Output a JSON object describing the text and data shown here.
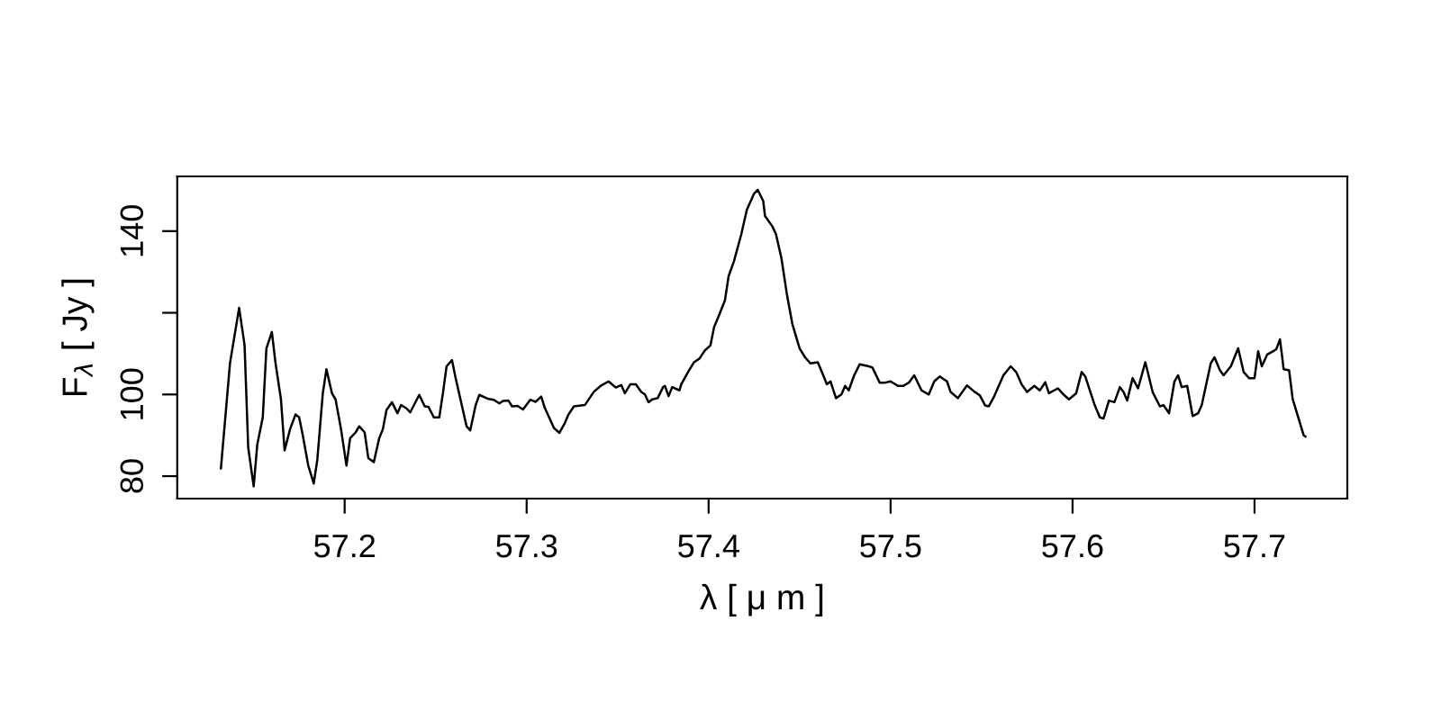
{
  "chart_data": {
    "type": "line",
    "xlabel": "λ [ μ m ]",
    "ylabel": "F$_{λ}$ [ Jy ]",
    "xlim": [
      57.108,
      57.751
    ],
    "ylim": [
      74.5,
      153.4
    ],
    "xticks": [
      57.2,
      57.3,
      57.4,
      57.5,
      57.6,
      57.7
    ],
    "yticks": [
      80,
      100,
      {
        "value": 120,
        "label": null
      },
      140
    ],
    "grid": false,
    "marker": "none",
    "line_style": "solid",
    "series": [
      {
        "color": "#000000",
        "x": [
          57.132,
          57.137,
          57.142,
          57.145,
          57.147,
          57.15,
          57.152,
          57.155,
          57.157,
          57.16,
          57.162,
          57.165,
          57.167,
          57.17,
          57.173,
          57.175,
          57.177,
          57.18,
          57.183,
          57.185,
          57.188,
          57.19,
          57.193,
          57.195,
          57.198,
          57.201,
          57.203,
          57.206,
          57.208,
          57.211,
          57.213,
          57.216,
          57.219,
          57.221,
          57.223,
          57.226,
          57.229,
          57.231,
          57.234,
          57.236,
          57.241,
          57.244,
          57.246,
          57.249,
          57.252,
          57.254,
          57.256,
          57.259,
          57.261,
          57.264,
          57.267,
          57.269,
          57.272,
          57.274,
          57.279,
          57.282,
          57.285,
          57.287,
          57.29,
          57.292,
          57.295,
          57.298,
          57.302,
          57.305,
          57.308,
          57.31,
          57.315,
          57.318,
          57.321,
          57.323,
          57.326,
          57.332,
          57.337,
          57.341,
          57.345,
          57.349,
          57.352,
          57.354,
          57.357,
          57.36,
          57.363,
          57.365,
          57.367,
          57.369,
          57.372,
          57.375,
          57.376,
          57.378,
          57.38,
          57.384,
          57.385,
          57.389,
          57.392,
          57.395,
          57.398,
          57.401,
          57.403,
          57.406,
          57.409,
          57.411,
          57.414,
          57.418,
          57.421,
          57.425,
          57.427,
          57.43,
          57.431,
          57.435,
          57.437,
          57.44,
          57.443,
          57.446,
          57.45,
          57.453,
          57.456,
          57.46,
          57.463,
          57.465,
          57.467,
          57.47,
          57.473,
          57.475,
          57.477,
          57.48,
          57.483,
          57.488,
          57.49,
          57.494,
          57.497,
          57.5,
          57.504,
          57.507,
          57.51,
          57.513,
          57.517,
          57.521,
          57.524,
          57.527,
          57.531,
          57.533,
          57.537,
          57.542,
          57.546,
          57.549,
          57.552,
          57.554,
          57.557,
          57.562,
          57.566,
          57.569,
          57.572,
          57.575,
          57.579,
          57.582,
          57.585,
          57.587,
          57.592,
          57.595,
          57.598,
          57.602,
          57.605,
          57.607,
          57.612,
          57.615,
          57.617,
          57.62,
          57.623,
          57.626,
          57.628,
          57.63,
          57.633,
          57.636,
          57.64,
          57.644,
          57.648,
          57.65,
          57.653,
          57.656,
          57.658,
          57.66,
          57.663,
          57.666,
          57.669,
          57.671,
          57.676,
          57.678,
          57.681,
          57.683,
          57.687,
          57.691,
          57.694,
          57.697,
          57.7,
          57.702,
          57.704,
          57.707,
          57.711,
          57.712,
          57.714,
          57.716,
          57.719,
          57.721,
          57.723,
          57.727,
          57.728
        ],
        "values": [
          81.9,
          107.7,
          121.2,
          112.1,
          87.0,
          77.5,
          87.8,
          94.4,
          111.3,
          115.3,
          107.7,
          98.8,
          86.3,
          91.5,
          95.1,
          94.4,
          90.0,
          82.6,
          78.2,
          84.1,
          100.3,
          106.2,
          100.3,
          98.8,
          91.5,
          82.6,
          89.3,
          90.7,
          92.2,
          90.7,
          84.4,
          83.4,
          89.3,
          91.5,
          96.2,
          98.1,
          95.4,
          97.4,
          96.6,
          95.6,
          99.9,
          97.1,
          97.0,
          94.4,
          94.4,
          100.3,
          106.9,
          108.4,
          104.0,
          98.1,
          92.2,
          91.2,
          97.4,
          99.9,
          98.9,
          98.7,
          97.8,
          98.4,
          98.5,
          97.1,
          97.2,
          96.3,
          98.7,
          98.2,
          99.5,
          96.7,
          91.8,
          90.6,
          93.0,
          95.1,
          97.1,
          97.4,
          100.7,
          102.2,
          103.2,
          101.7,
          102.3,
          100.3,
          102.5,
          102.5,
          100.6,
          100.0,
          98.1,
          98.8,
          99.1,
          101.8,
          102.1,
          99.6,
          101.8,
          101.0,
          102.5,
          105.7,
          107.9,
          108.8,
          110.8,
          112.0,
          116.5,
          119.7,
          123.1,
          129.0,
          132.7,
          139.3,
          145.2,
          149.2,
          150.1,
          147.4,
          143.7,
          141.2,
          139.3,
          133.4,
          124.6,
          117.3,
          111.3,
          109.1,
          107.6,
          107.9,
          104.7,
          102.5,
          103.2,
          99.1,
          100.0,
          102.1,
          101.0,
          104.7,
          107.4,
          106.9,
          106.6,
          102.9,
          102.9,
          103.2,
          102.1,
          102.1,
          102.9,
          104.7,
          101.0,
          100.0,
          103.2,
          104.4,
          103.2,
          100.6,
          99.1,
          102.2,
          100.7,
          99.8,
          97.3,
          97.1,
          99.6,
          104.7,
          106.9,
          105.5,
          102.5,
          100.6,
          102.1,
          101.0,
          103.0,
          100.3,
          101.5,
          100.0,
          98.8,
          100.3,
          105.5,
          104.4,
          97.6,
          94.4,
          94.1,
          98.5,
          98.1,
          101.8,
          100.6,
          98.5,
          104.0,
          101.5,
          107.9,
          100.6,
          97.1,
          97.4,
          95.4,
          103.2,
          104.7,
          101.8,
          102.1,
          94.7,
          95.4,
          97.4,
          107.7,
          109.1,
          105.9,
          104.7,
          106.9,
          111.3,
          105.5,
          104.0,
          104.0,
          110.6,
          106.9,
          109.8,
          110.8,
          111.1,
          113.5,
          106.2,
          105.9,
          98.8,
          95.9,
          90.0,
          89.7
        ]
      }
    ]
  }
}
